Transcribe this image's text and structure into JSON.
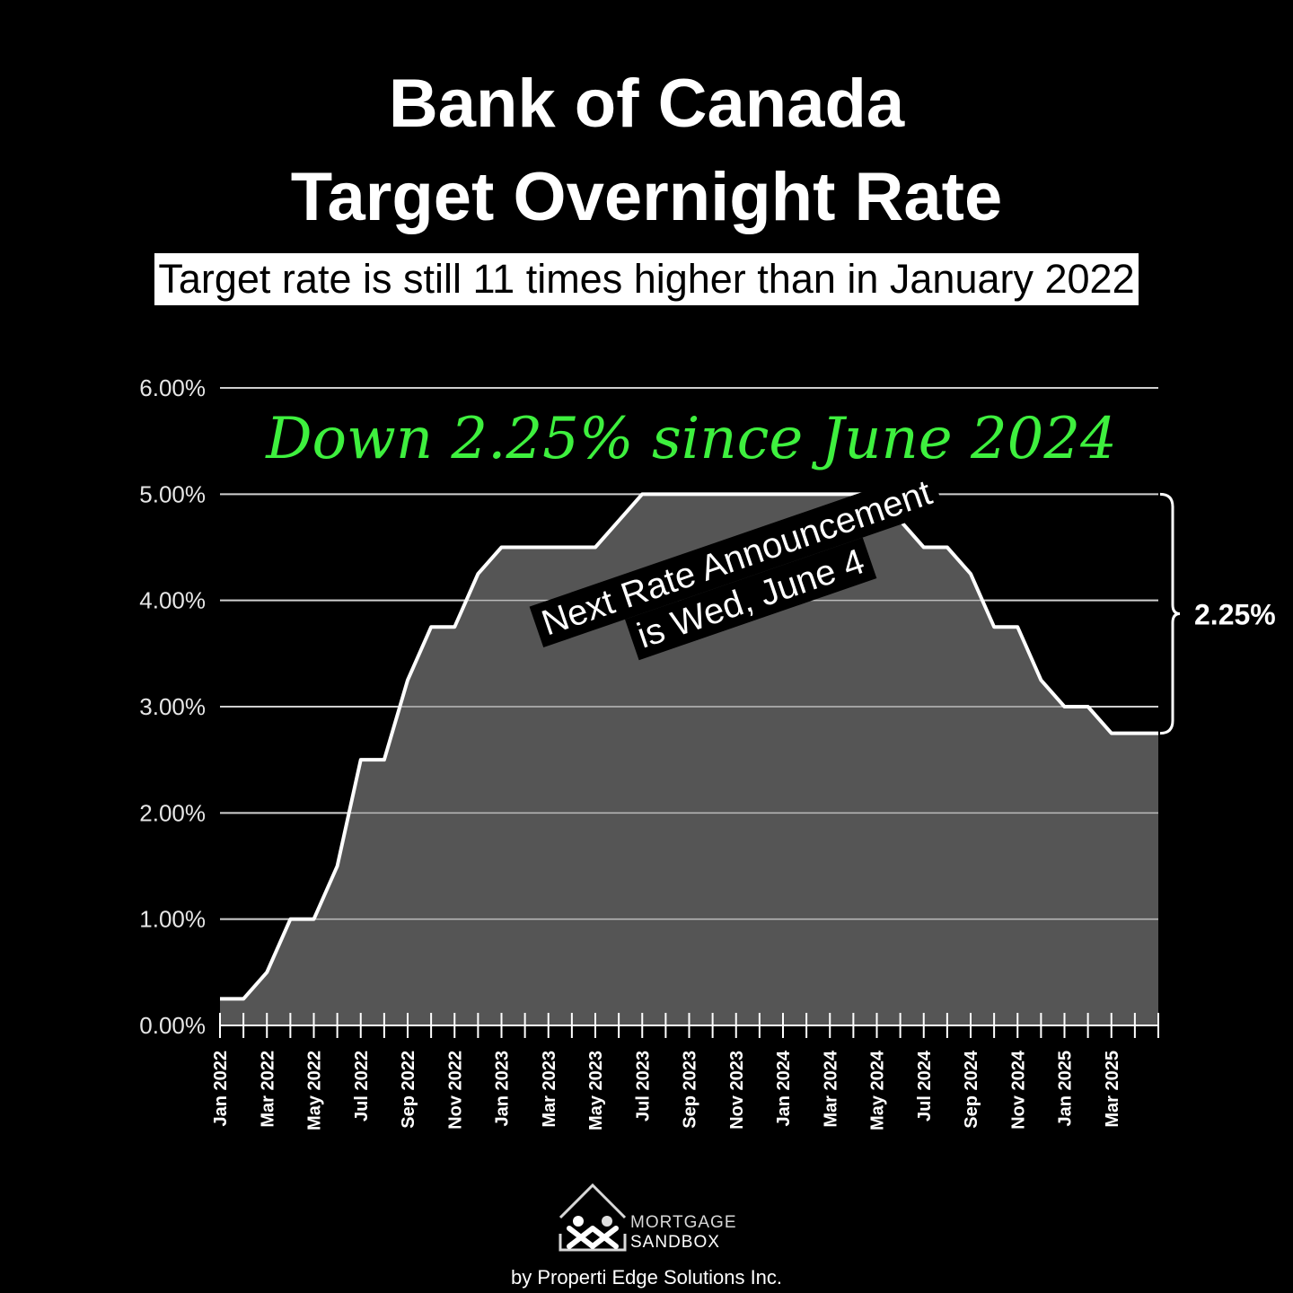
{
  "header": {
    "title_line_1": "Bank of Canada",
    "title_line_2": "Target Overnight Rate",
    "subtitle": "Target rate is still 11 times higher than in January 2022"
  },
  "annotations": {
    "headline": "Down 2.25% since June 2024",
    "bracket_label": "2.25%",
    "stamp_line_1": "Next Rate Announcement",
    "stamp_line_2": "is Wed, June 4"
  },
  "branding": {
    "logo_line_1": "MORTGAGE",
    "logo_line_2": "SANDBOX",
    "byline": "by Properti Edge Solutions Inc."
  },
  "colors": {
    "background": "#000000",
    "area_fill": "#555555",
    "line": "#ffffff",
    "gridline": "#cfcfcf",
    "headline": "#3ef03e"
  },
  "chart_data": {
    "type": "area",
    "title": "Bank of Canada Target Overnight Rate",
    "xlabel": "",
    "ylabel": "",
    "ylim": [
      0,
      6
    ],
    "yticks": [
      0,
      1,
      2,
      3,
      4,
      5,
      6
    ],
    "ytick_labels": [
      "0.00%",
      "1.00%",
      "2.00%",
      "3.00%",
      "4.00%",
      "5.00%",
      "6.00%"
    ],
    "grid": true,
    "categories": [
      "Jan 2022",
      "Feb 2022",
      "Mar 2022",
      "Apr 2022",
      "May 2022",
      "Jun 2022",
      "Jul 2022",
      "Aug 2022",
      "Sep 2022",
      "Oct 2022",
      "Nov 2022",
      "Dec 2022",
      "Jan 2023",
      "Feb 2023",
      "Mar 2023",
      "Apr 2023",
      "May 2023",
      "Jun 2023",
      "Jul 2023",
      "Aug 2023",
      "Sep 2023",
      "Oct 2023",
      "Nov 2023",
      "Dec 2023",
      "Jan 2024",
      "Feb 2024",
      "Mar 2024",
      "Apr 2024",
      "May 2024",
      "Jun 2024",
      "Jul 2024",
      "Aug 2024",
      "Sep 2024",
      "Oct 2024",
      "Nov 2024",
      "Dec 2024",
      "Jan 2025",
      "Feb 2025",
      "Mar 2025",
      "Apr 2025",
      "May 2025"
    ],
    "x_tick_labels": [
      "Jan 2022",
      "Mar 2022",
      "May 2022",
      "Jul 2022",
      "Sep 2022",
      "Nov 2022",
      "Jan 2023",
      "Mar 2023",
      "May 2023",
      "Jul 2023",
      "Sep 2023",
      "Nov 2023",
      "Jan 2024",
      "Mar 2024",
      "May 2024",
      "Jul 2024",
      "Sep 2024",
      "Nov 2024",
      "Jan 2025",
      "Mar 2025"
    ],
    "series": [
      {
        "values": [
          0.25,
          0.25,
          0.5,
          1.0,
          1.0,
          1.5,
          2.5,
          2.5,
          3.25,
          3.75,
          3.75,
          4.25,
          4.5,
          4.5,
          4.5,
          4.5,
          4.5,
          4.75,
          5.0,
          5.0,
          5.0,
          5.0,
          5.0,
          5.0,
          5.0,
          5.0,
          5.0,
          5.0,
          5.0,
          4.75,
          4.5,
          4.5,
          4.25,
          3.75,
          3.75,
          3.25,
          3.0,
          3.0,
          2.75,
          2.75,
          2.75
        ]
      }
    ],
    "bracket": {
      "from": 5.0,
      "to": 2.75
    }
  }
}
